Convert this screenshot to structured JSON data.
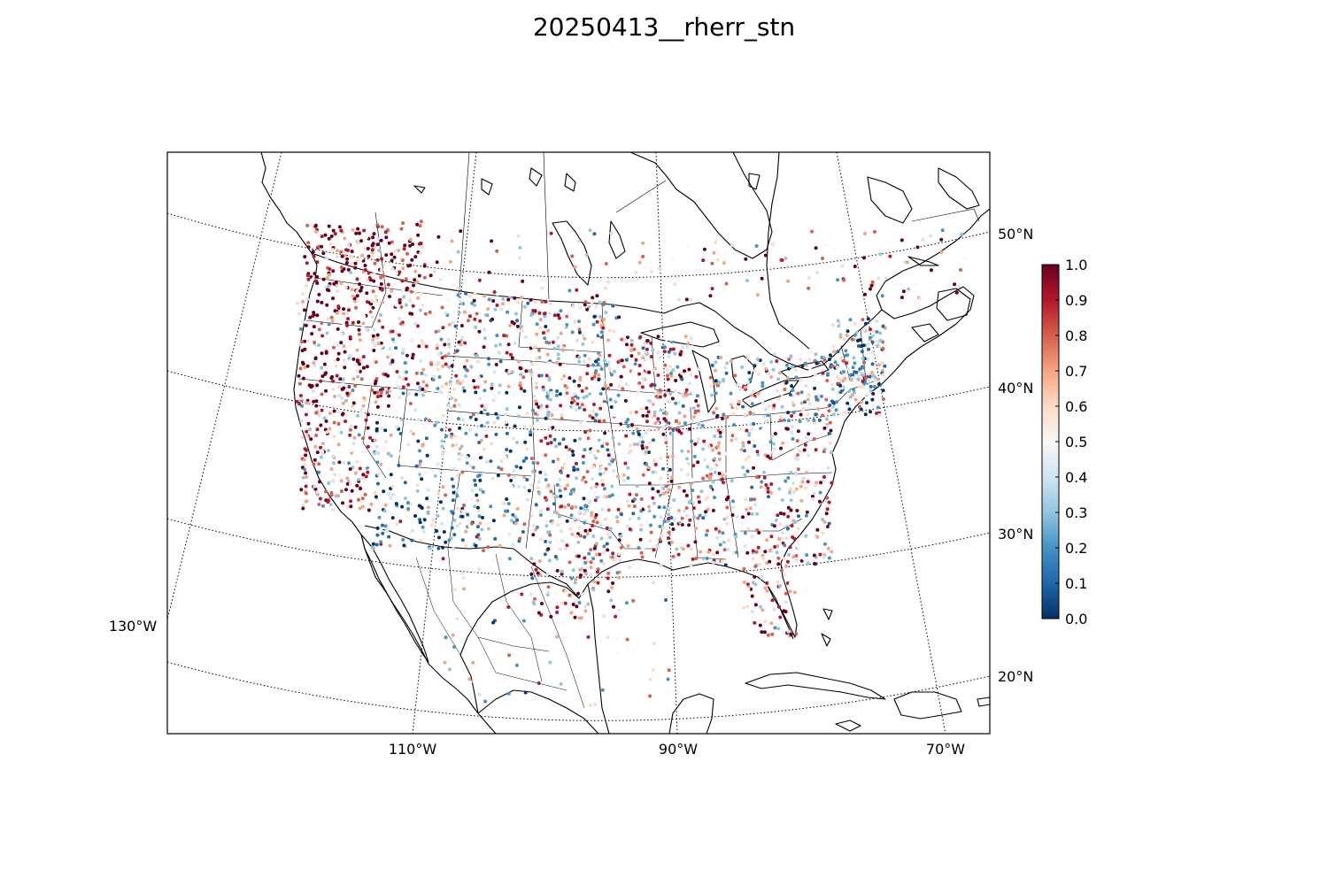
{
  "title": "20250413__rherr_stn",
  "map": {
    "lon_labels": [
      "130°W",
      "110°W",
      "90°W",
      "70°W"
    ],
    "lat_labels": [
      "50°N",
      "40°N",
      "30°N",
      "20°N"
    ]
  },
  "colorbar": {
    "colormap": "RdBu_r",
    "min": 0.0,
    "max": 1.0,
    "tick_labels": [
      "1.0",
      "0.9",
      "0.8",
      "0.7",
      "0.6",
      "0.5",
      "0.4",
      "0.3",
      "0.2",
      "0.1",
      "0.0"
    ],
    "colors": [
      "#053061",
      "#2166ac",
      "#4393c3",
      "#92c5de",
      "#d1e5f0",
      "#f7f7f7",
      "#fddbc7",
      "#f4a582",
      "#d6604d",
      "#b2182b",
      "#67001f"
    ]
  }
}
